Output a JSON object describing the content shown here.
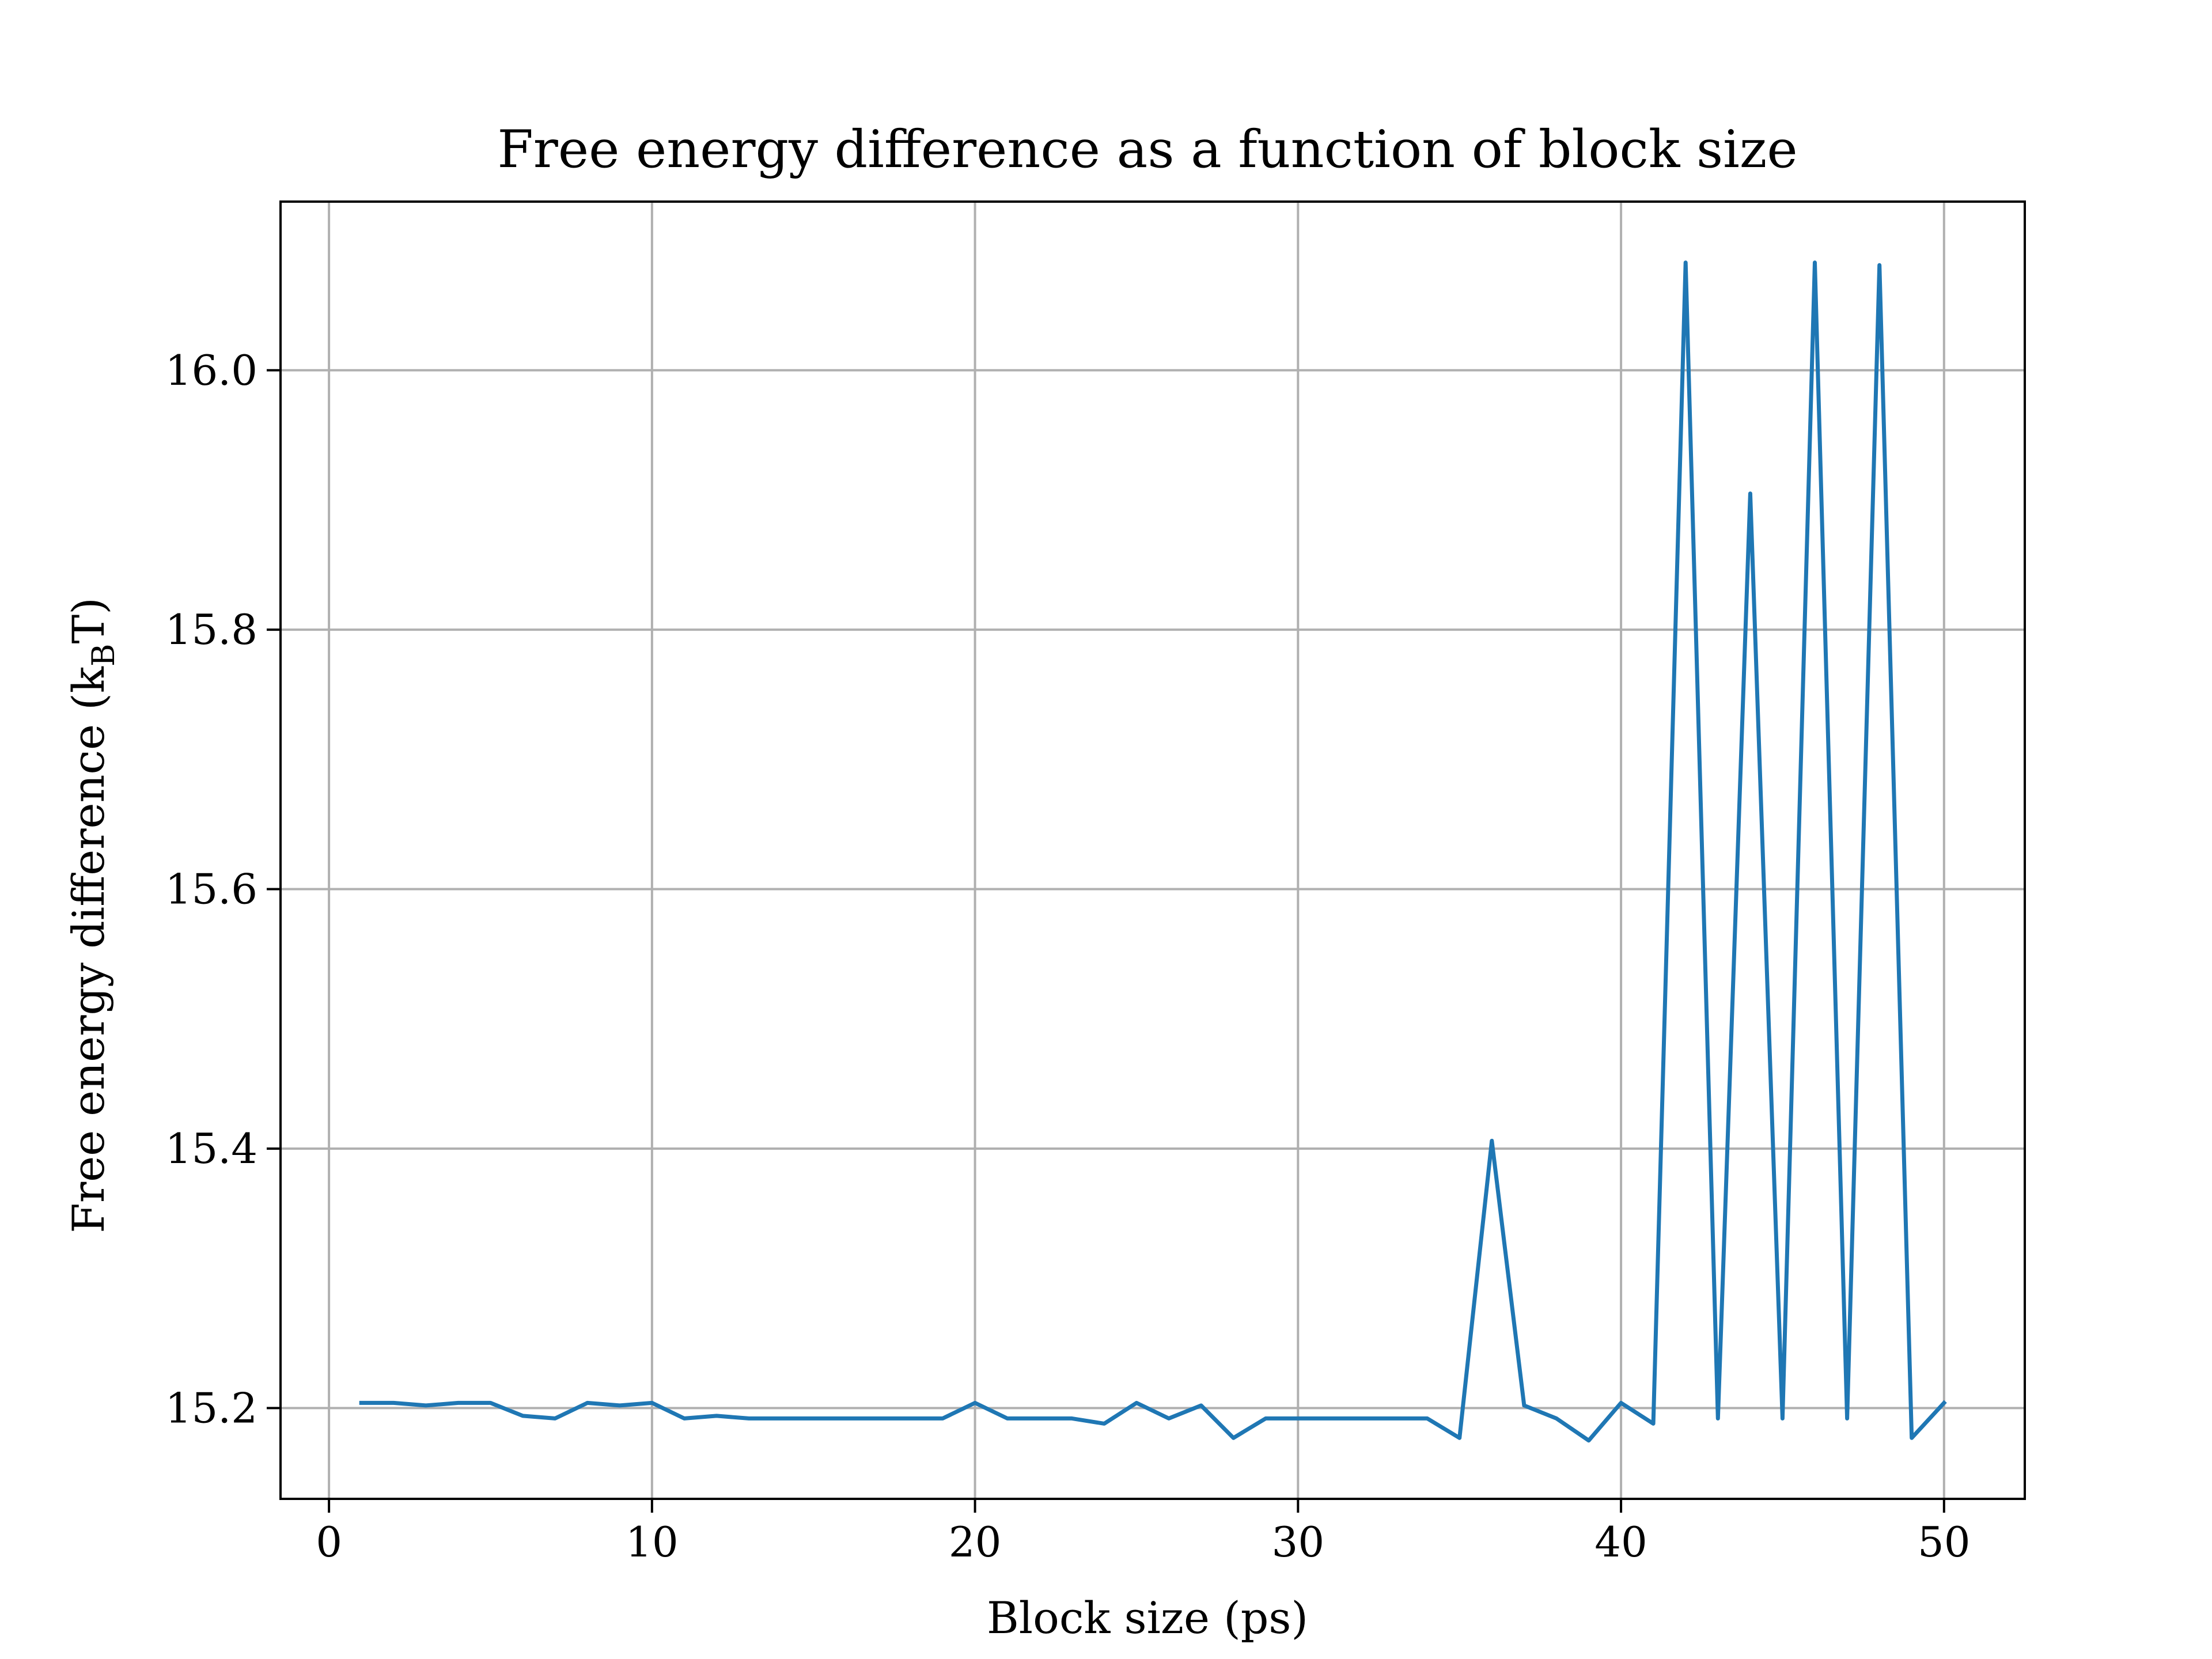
{
  "chart_data": {
    "type": "line",
    "title": "Free energy difference as a function of block size",
    "xlabel": "Block size (ps)",
    "ylabel": {
      "main": "Free energy difference (k",
      "subscript": "B",
      "tail": "T)"
    },
    "xlim": [
      -1.5,
      52.5
    ],
    "ylim": [
      15.13,
      16.13
    ],
    "xticks": [
      0,
      10,
      20,
      30,
      40,
      50
    ],
    "yticks": [
      15.2,
      15.4,
      15.6,
      15.8,
      16.0
    ],
    "xtick_labels": [
      "0",
      "10",
      "20",
      "30",
      "40",
      "50"
    ],
    "ytick_labels": [
      "15.2",
      "15.4",
      "15.6",
      "15.8",
      "16.0"
    ],
    "grid": true,
    "legend": "none",
    "colors": {
      "line": "#1f77b4",
      "grid": "#b0b0b0",
      "axes": "#000000"
    },
    "series": [
      {
        "x": [
          1,
          2,
          3,
          4,
          5,
          6,
          7,
          8,
          9,
          10,
          11,
          12,
          13,
          14,
          15,
          16,
          17,
          18,
          19,
          20,
          21,
          22,
          23,
          24,
          25,
          26,
          27,
          28,
          29,
          30,
          31,
          32,
          33,
          34,
          35,
          36,
          37,
          38,
          39,
          40,
          41,
          42,
          43,
          44,
          45,
          46,
          47,
          48,
          49,
          50
        ],
        "values": [
          15.204,
          15.204,
          15.202,
          15.204,
          15.204,
          15.194,
          15.192,
          15.204,
          15.202,
          15.204,
          15.192,
          15.194,
          15.192,
          15.192,
          15.192,
          15.192,
          15.192,
          15.192,
          15.192,
          15.204,
          15.192,
          15.192,
          15.192,
          15.188,
          15.204,
          15.192,
          15.202,
          15.177,
          15.192,
          15.192,
          15.192,
          15.192,
          15.192,
          15.192,
          15.177,
          15.406,
          15.202,
          15.192,
          15.175,
          15.204,
          15.188,
          16.083,
          15.192,
          15.905,
          15.192,
          16.083,
          15.192,
          16.081,
          15.177,
          15.204
        ]
      }
    ]
  }
}
